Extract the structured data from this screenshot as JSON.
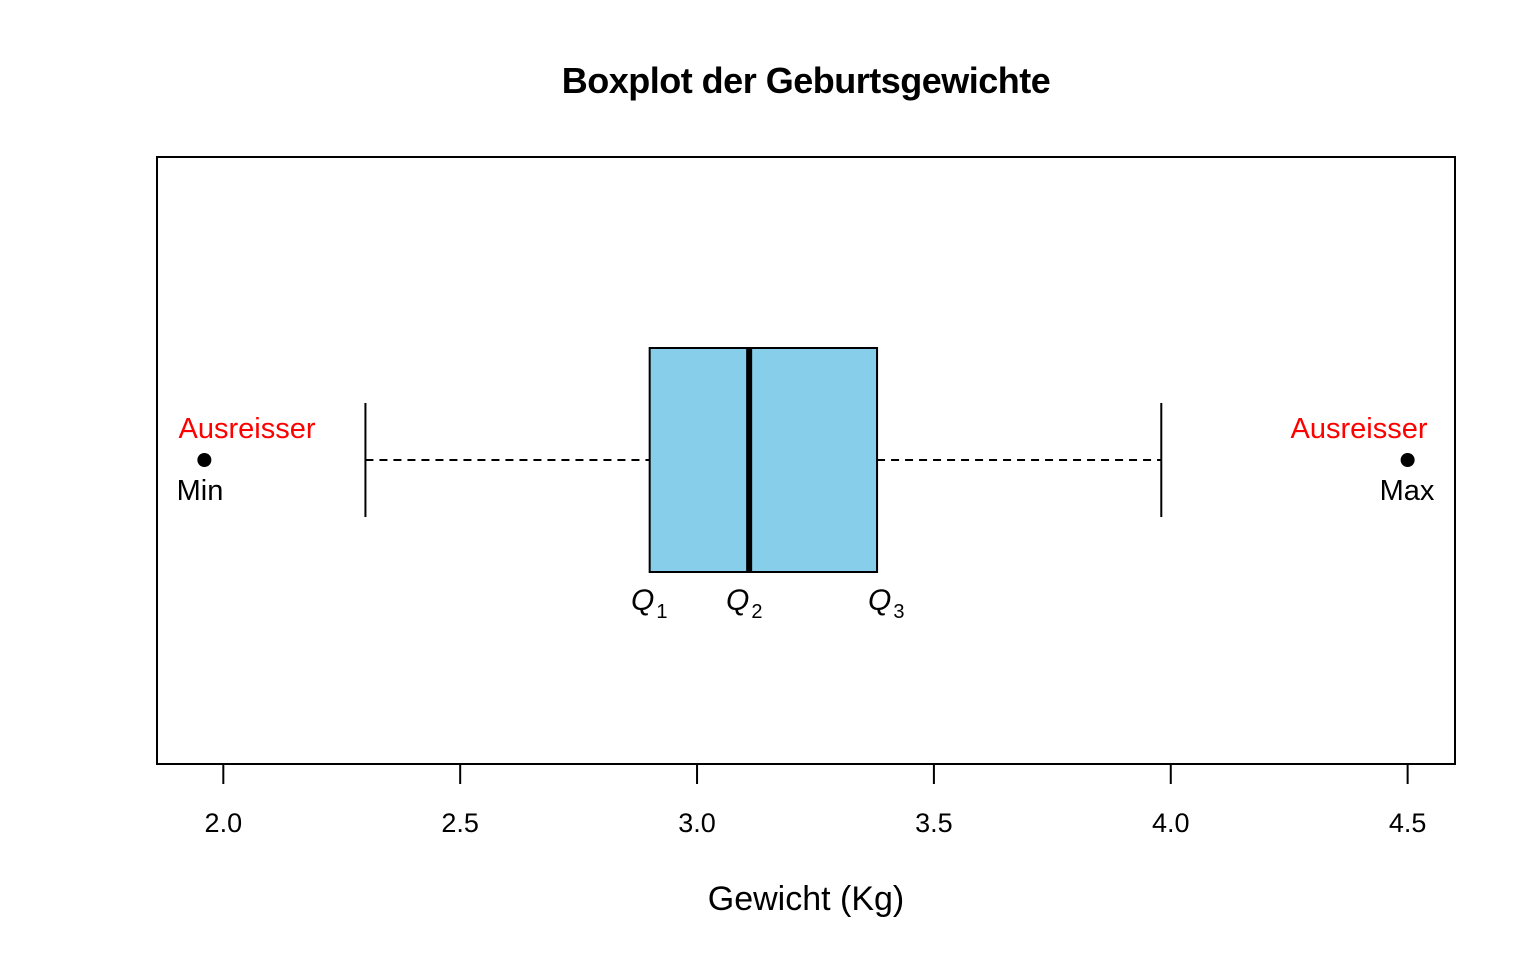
{
  "chart_data": {
    "type": "boxplot",
    "title": "Boxplot der Geburtsgewichte",
    "xlabel": "Gewicht (Kg)",
    "xlim": [
      1.86,
      4.6
    ],
    "ticks": [
      2.0,
      2.5,
      3.0,
      3.5,
      4.0,
      4.5
    ],
    "tick_labels": [
      "2.0",
      "2.5",
      "3.0",
      "3.5",
      "4.0",
      "4.5"
    ],
    "whisker_low": 2.3,
    "q1": 2.9,
    "median": 3.11,
    "q3": 3.38,
    "whisker_high": 3.98,
    "outliers": [
      1.96,
      4.5
    ],
    "box_color": "#87CEEB",
    "outlier_label_color": "#FF0000",
    "annotations": {
      "outlier_left_label": "Ausreisser",
      "outlier_right_label": "Ausreisser",
      "min_label": "Min",
      "max_label": "Max",
      "q1_label": "Q",
      "q1_sub": "1",
      "q2_label": "Q",
      "q2_sub": "2",
      "q3_label": "Q",
      "q3_sub": "3"
    }
  }
}
